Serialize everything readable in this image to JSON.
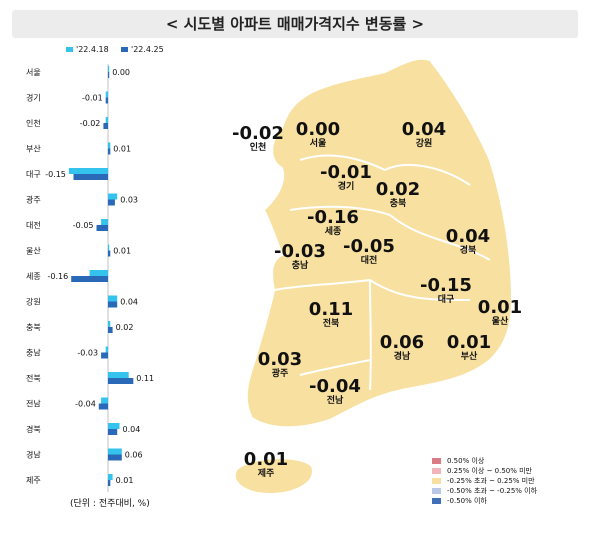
{
  "title": "< 시도별 아파트 매매가격지수 변동률 >",
  "chart_data": {
    "type": "bar",
    "orientation": "horizontal",
    "categories": [
      "서울",
      "경기",
      "인천",
      "부산",
      "대구",
      "광주",
      "대전",
      "울산",
      "세종",
      "강원",
      "충북",
      "충남",
      "전북",
      "전남",
      "경북",
      "경남",
      "제주"
    ],
    "series": [
      {
        "name": "'22.4.18",
        "color": "#33c3ec",
        "values": [
          0.0,
          -0.01,
          -0.01,
          0.01,
          -0.17,
          0.04,
          -0.03,
          0.0,
          -0.08,
          0.04,
          0.01,
          -0.01,
          0.09,
          -0.03,
          0.05,
          0.06,
          0.02
        ]
      },
      {
        "name": "'22.4.25",
        "color": "#2a68b8",
        "values": [
          0.0,
          -0.01,
          -0.02,
          0.01,
          -0.15,
          0.03,
          -0.05,
          0.01,
          -0.16,
          0.04,
          0.02,
          -0.03,
          0.11,
          -0.04,
          0.04,
          0.06,
          0.01
        ]
      }
    ],
    "data_labels": [
      "0.00",
      "-0.01",
      "-0.02",
      "0.01",
      "-0.15",
      "0.03",
      "-0.05",
      "0.01",
      "-0.16",
      "0.04",
      "0.02",
      "-0.03",
      "0.11",
      "-0.04",
      "0.04",
      "0.06",
      "0.01"
    ],
    "unit_note": "(단위 : 전주대비, %)"
  },
  "map": {
    "regions": [
      {
        "name": "인천",
        "value": "-0.02"
      },
      {
        "name": "서울",
        "value": "0.00"
      },
      {
        "name": "강원",
        "value": "0.04"
      },
      {
        "name": "경기",
        "value": "-0.01"
      },
      {
        "name": "충북",
        "value": "0.02"
      },
      {
        "name": "세종",
        "value": "-0.16"
      },
      {
        "name": "충남",
        "value": "-0.03"
      },
      {
        "name": "대전",
        "value": "-0.05"
      },
      {
        "name": "경북",
        "value": "0.04"
      },
      {
        "name": "대구",
        "value": "-0.15"
      },
      {
        "name": "울산",
        "value": "0.01"
      },
      {
        "name": "전북",
        "value": "0.11"
      },
      {
        "name": "경남",
        "value": "0.06"
      },
      {
        "name": "부산",
        "value": "0.01"
      },
      {
        "name": "광주",
        "value": "0.03"
      },
      {
        "name": "전남",
        "value": "-0.04"
      },
      {
        "name": "제주",
        "value": "0.01"
      }
    ],
    "fill_color": "#f8e0a0",
    "legend": [
      {
        "label": "0.50% 이상",
        "color": "#d97a84"
      },
      {
        "label": "0.25% 이상 ~ 0.50% 미만",
        "color": "#f0b4ba"
      },
      {
        "label": "-0.25% 초과 ~ 0.25% 미만",
        "color": "#f8e0a0"
      },
      {
        "label": "-0.50% 초과 ~ -0.25% 이하",
        "color": "#b9c8e6"
      },
      {
        "label": "-0.50% 이하",
        "color": "#3f6fb6"
      }
    ]
  }
}
